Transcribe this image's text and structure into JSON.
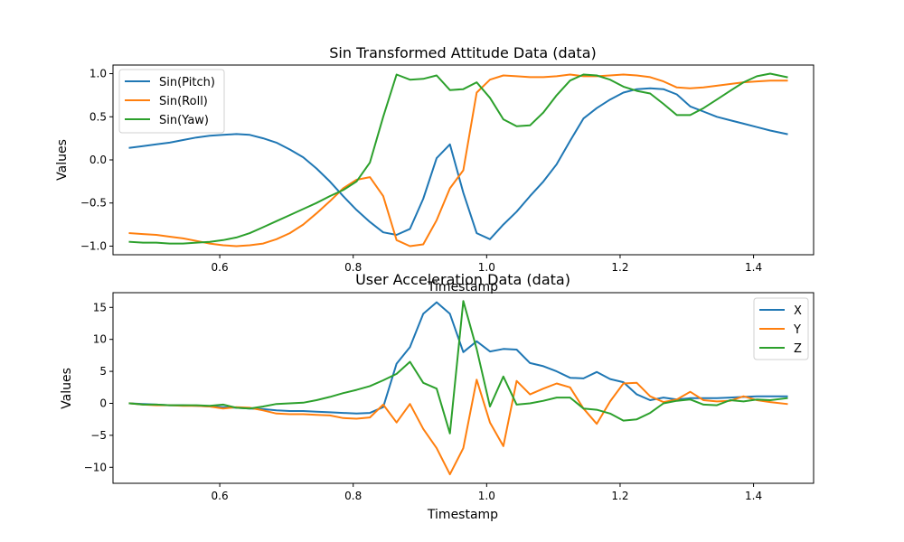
{
  "chart_data": [
    {
      "type": "line",
      "title": "Sin Transformed Attitude Data (data)",
      "xlabel": "Timestamp",
      "ylabel": "Values",
      "xlim": [
        0.44,
        1.49
      ],
      "ylim": [
        -1.1,
        1.1
      ],
      "xticks": [
        0.6,
        0.8,
        1.0,
        1.2,
        1.4
      ],
      "xtick_labels": [
        "0.6",
        "0.8",
        "1.0",
        "1.2",
        "1.4"
      ],
      "yticks": [
        -1.0,
        -0.5,
        0.0,
        0.5,
        1.0
      ],
      "ytick_labels": [
        "−1.0",
        "−0.5",
        "0.0",
        "0.5",
        "1.0"
      ],
      "grid": false,
      "legend": "top-left",
      "x": [
        0.465,
        0.485,
        0.505,
        0.525,
        0.545,
        0.565,
        0.585,
        0.605,
        0.625,
        0.645,
        0.665,
        0.685,
        0.705,
        0.725,
        0.745,
        0.765,
        0.785,
        0.805,
        0.825,
        0.845,
        0.865,
        0.885,
        0.905,
        0.925,
        0.945,
        0.965,
        0.985,
        1.005,
        1.025,
        1.045,
        1.065,
        1.085,
        1.105,
        1.125,
        1.145,
        1.165,
        1.185,
        1.205,
        1.225,
        1.245,
        1.265,
        1.285,
        1.305,
        1.325,
        1.345,
        1.365,
        1.385,
        1.405,
        1.425,
        1.45
      ],
      "series": [
        {
          "name": "Sin(Pitch)",
          "color": "#1f77b4",
          "values": [
            0.14,
            0.16,
            0.18,
            0.2,
            0.23,
            0.26,
            0.28,
            0.29,
            0.3,
            0.29,
            0.25,
            0.2,
            0.12,
            0.03,
            -0.1,
            -0.25,
            -0.42,
            -0.58,
            -0.72,
            -0.84,
            -0.87,
            -0.8,
            -0.45,
            0.02,
            0.18,
            -0.38,
            -0.85,
            -0.92,
            -0.75,
            -0.6,
            -0.42,
            -0.25,
            -0.05,
            0.22,
            0.48,
            0.6,
            0.7,
            0.78,
            0.82,
            0.83,
            0.82,
            0.76,
            0.62,
            0.56,
            0.5,
            0.46,
            0.42,
            0.38,
            0.34,
            0.3
          ]
        },
        {
          "name": "Sin(Roll)",
          "color": "#ff7f0e",
          "values": [
            -0.85,
            -0.86,
            -0.87,
            -0.89,
            -0.91,
            -0.94,
            -0.97,
            -0.99,
            -1.0,
            -0.99,
            -0.97,
            -0.92,
            -0.85,
            -0.75,
            -0.62,
            -0.48,
            -0.33,
            -0.23,
            -0.2,
            -0.42,
            -0.93,
            -1.0,
            -0.98,
            -0.7,
            -0.33,
            -0.12,
            0.78,
            0.93,
            0.98,
            0.97,
            0.96,
            0.96,
            0.97,
            0.99,
            0.97,
            0.97,
            0.98,
            0.99,
            0.98,
            0.96,
            0.91,
            0.84,
            0.83,
            0.84,
            0.86,
            0.88,
            0.9,
            0.91,
            0.92,
            0.92
          ]
        },
        {
          "name": "Sin(Yaw)",
          "color": "#2ca02c",
          "values": [
            -0.95,
            -0.96,
            -0.96,
            -0.97,
            -0.97,
            -0.96,
            -0.95,
            -0.93,
            -0.9,
            -0.85,
            -0.78,
            -0.71,
            -0.64,
            -0.57,
            -0.5,
            -0.42,
            -0.35,
            -0.25,
            -0.03,
            0.5,
            0.99,
            0.93,
            0.94,
            0.98,
            0.81,
            0.82,
            0.9,
            0.72,
            0.47,
            0.39,
            0.4,
            0.55,
            0.75,
            0.92,
            0.99,
            0.98,
            0.93,
            0.85,
            0.8,
            0.77,
            0.65,
            0.52,
            0.52,
            0.6,
            0.7,
            0.8,
            0.9,
            0.97,
            1.0,
            0.96
          ]
        }
      ]
    },
    {
      "type": "line",
      "title": "User Acceleration Data (data)",
      "xlabel": "Timestamp",
      "ylabel": "Values",
      "xlim": [
        0.44,
        1.49
      ],
      "ylim": [
        -12.5,
        17.3
      ],
      "xticks": [
        0.6,
        0.8,
        1.0,
        1.2,
        1.4
      ],
      "xtick_labels": [
        "0.6",
        "0.8",
        "1.0",
        "1.2",
        "1.4"
      ],
      "yticks": [
        -10,
        -5,
        0,
        5,
        10,
        15
      ],
      "ytick_labels": [
        "−10",
        "−5",
        "0",
        "5",
        "10",
        "15"
      ],
      "grid": false,
      "legend": "top-right",
      "x": [
        0.465,
        0.485,
        0.505,
        0.525,
        0.545,
        0.565,
        0.585,
        0.605,
        0.625,
        0.645,
        0.665,
        0.685,
        0.705,
        0.725,
        0.745,
        0.765,
        0.785,
        0.805,
        0.825,
        0.845,
        0.865,
        0.885,
        0.905,
        0.925,
        0.945,
        0.965,
        0.985,
        1.005,
        1.025,
        1.045,
        1.065,
        1.085,
        1.105,
        1.125,
        1.145,
        1.165,
        1.185,
        1.205,
        1.225,
        1.245,
        1.265,
        1.285,
        1.305,
        1.325,
        1.345,
        1.365,
        1.385,
        1.405,
        1.425,
        1.45
      ],
      "series": [
        {
          "name": "X",
          "color": "#1f77b4",
          "values": [
            0.0,
            -0.1,
            -0.2,
            -0.3,
            -0.3,
            -0.4,
            -0.5,
            -0.6,
            -0.7,
            -0.8,
            -0.9,
            -1.1,
            -1.2,
            -1.2,
            -1.3,
            -1.4,
            -1.5,
            -1.6,
            -1.5,
            -0.6,
            6.2,
            8.8,
            14.0,
            15.8,
            14.0,
            8.0,
            9.7,
            8.1,
            8.5,
            8.4,
            6.3,
            5.8,
            5.0,
            4.0,
            3.9,
            4.9,
            3.8,
            3.3,
            1.4,
            0.5,
            0.9,
            0.6,
            0.8,
            0.8,
            0.8,
            0.9,
            1.0,
            1.1,
            1.1,
            1.1
          ]
        },
        {
          "name": "Y",
          "color": "#ff7f0e",
          "values": [
            0.0,
            -0.2,
            -0.3,
            -0.3,
            -0.4,
            -0.4,
            -0.5,
            -0.8,
            -0.6,
            -0.7,
            -1.1,
            -1.6,
            -1.7,
            -1.7,
            -1.8,
            -1.9,
            -2.3,
            -2.4,
            -2.2,
            -0.2,
            -3.0,
            -0.1,
            -4.0,
            -7.0,
            -11.1,
            -7.0,
            3.7,
            -3.0,
            -6.7,
            3.5,
            1.4,
            2.3,
            3.1,
            2.5,
            -0.8,
            -3.2,
            0.3,
            3.1,
            3.2,
            1.1,
            0.2,
            0.6,
            1.8,
            0.5,
            0.3,
            0.4,
            1.1,
            0.5,
            0.2,
            -0.1
          ]
        },
        {
          "name": "Z",
          "color": "#2ca02c",
          "values": [
            0.0,
            -0.2,
            -0.2,
            -0.3,
            -0.3,
            -0.3,
            -0.4,
            -0.2,
            -0.7,
            -0.8,
            -0.5,
            -0.1,
            0.0,
            0.1,
            0.5,
            1.0,
            1.6,
            2.1,
            2.7,
            3.6,
            4.6,
            6.5,
            3.2,
            2.3,
            -4.7,
            16.0,
            8.5,
            -0.5,
            4.2,
            -0.2,
            0.0,
            0.4,
            0.9,
            0.9,
            -0.8,
            -1.0,
            -1.6,
            -2.7,
            -2.5,
            -1.5,
            0.0,
            0.4,
            0.6,
            -0.2,
            -0.3,
            0.5,
            0.3,
            0.6,
            0.5,
            0.8
          ]
        }
      ]
    }
  ]
}
